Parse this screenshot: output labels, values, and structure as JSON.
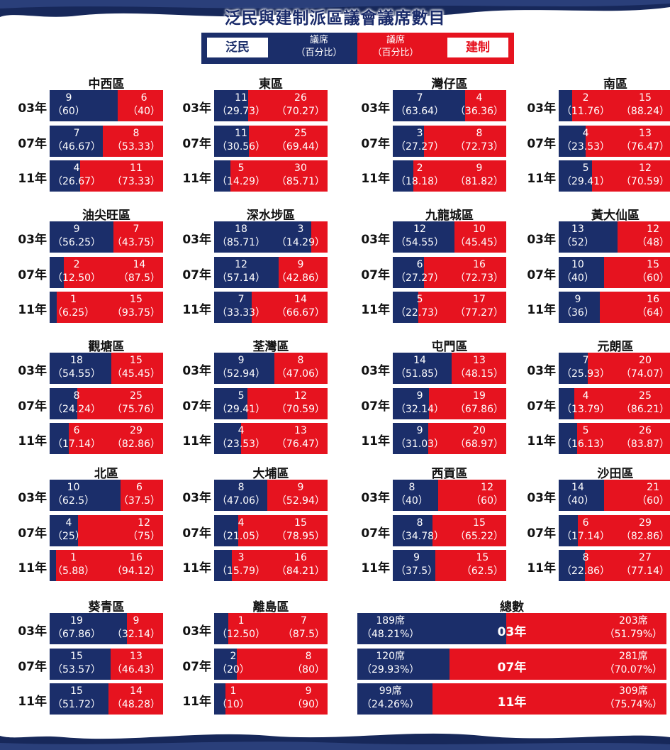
{
  "title": "泛民與建制派區議會議席數目",
  "legend": {
    "pan": "泛民",
    "pan_sub": "議席\n（百分比）",
    "est_sub": "議席\n（百分比）",
    "est": "建制"
  },
  "colors": {
    "pan_democrat": "#1b2e6a",
    "pro_establishment": "#e6131f"
  },
  "chart_data": {
    "type": "bar",
    "title": "泛民與建制派區議會議席數目",
    "series_names": [
      "泛民",
      "建制"
    ],
    "years": [
      "03年",
      "07年",
      "11年"
    ],
    "districts": [
      {
        "name": "中西區",
        "rows": [
          {
            "year": "03年",
            "pan": "9",
            "pan_pct": "（60）",
            "est": "6",
            "est_pct": "（40）",
            "share": 60
          },
          {
            "year": "07年",
            "pan": "7",
            "pan_pct": "（46.67）",
            "est": "8",
            "est_pct": "（53.33）",
            "share": 46.67
          },
          {
            "year": "11年",
            "pan": "4",
            "pan_pct": "（26.67）",
            "est": "11",
            "est_pct": "（73.33）",
            "share": 26.67
          }
        ]
      },
      {
        "name": "東區",
        "rows": [
          {
            "year": "03年",
            "pan": "11",
            "pan_pct": "（29.73）",
            "est": "26",
            "est_pct": "（70.27）",
            "share": 29.73
          },
          {
            "year": "07年",
            "pan": "11",
            "pan_pct": "（30.56）",
            "est": "25",
            "est_pct": "（69.44）",
            "share": 30.56
          },
          {
            "year": "11年",
            "pan": "5",
            "pan_pct": "（14.29）",
            "est": "30",
            "est_pct": "（85.71）",
            "share": 14.29
          }
        ]
      },
      {
        "name": "灣仔區",
        "rows": [
          {
            "year": "03年",
            "pan": "7",
            "pan_pct": "（63.64）",
            "est": "4",
            "est_pct": "（36.36）",
            "share": 63.64
          },
          {
            "year": "07年",
            "pan": "3",
            "pan_pct": "（27.27）",
            "est": "8",
            "est_pct": "（72.73）",
            "share": 27.27
          },
          {
            "year": "11年",
            "pan": "2",
            "pan_pct": "（18.18）",
            "est": "9",
            "est_pct": "（81.82）",
            "share": 18.18
          }
        ]
      },
      {
        "name": "南區",
        "rows": [
          {
            "year": "03年",
            "pan": "2",
            "pan_pct": "（11.76）",
            "est": "15",
            "est_pct": "（88.24）",
            "share": 11.76
          },
          {
            "year": "07年",
            "pan": "4",
            "pan_pct": "（23.53）",
            "est": "13",
            "est_pct": "（76.47）",
            "share": 23.53
          },
          {
            "year": "11年",
            "pan": "5",
            "pan_pct": "（29.41）",
            "est": "12",
            "est_pct": "（70.59）",
            "share": 29.41
          }
        ]
      },
      {
        "name": "油尖旺區",
        "rows": [
          {
            "year": "03年",
            "pan": "9",
            "pan_pct": "（56.25）",
            "est": "7",
            "est_pct": "（43.75）",
            "share": 56.25
          },
          {
            "year": "07年",
            "pan": "2",
            "pan_pct": "（12.50）",
            "est": "14",
            "est_pct": "（87.5）",
            "share": 12.5
          },
          {
            "year": "11年",
            "pan": "1",
            "pan_pct": "（6.25）",
            "est": "15",
            "est_pct": "（93.75）",
            "share": 6.25
          }
        ]
      },
      {
        "name": "深水埗區",
        "rows": [
          {
            "year": "03年",
            "pan": "18",
            "pan_pct": "（85.71）",
            "est": "3",
            "est_pct": "（14.29）",
            "share": 85.71
          },
          {
            "year": "07年",
            "pan": "12",
            "pan_pct": "（57.14）",
            "est": "9",
            "est_pct": "（42.86）",
            "share": 57.14
          },
          {
            "year": "11年",
            "pan": "7",
            "pan_pct": "（33.33）",
            "est": "14",
            "est_pct": "（66.67）",
            "share": 33.33
          }
        ]
      },
      {
        "name": "九龍城區",
        "rows": [
          {
            "year": "03年",
            "pan": "12",
            "pan_pct": "（54.55）",
            "est": "10",
            "est_pct": "（45.45）",
            "share": 54.55
          },
          {
            "year": "07年",
            "pan": "6",
            "pan_pct": "（27.27）",
            "est": "16",
            "est_pct": "（72.73）",
            "share": 27.27
          },
          {
            "year": "11年",
            "pan": "5",
            "pan_pct": "（22.73）",
            "est": "17",
            "est_pct": "（77.27）",
            "share": 22.73
          }
        ]
      },
      {
        "name": "黃大仙區",
        "rows": [
          {
            "year": "03年",
            "pan": "13",
            "pan_pct": "（52）",
            "est": "12",
            "est_pct": "（48）",
            "share": 52
          },
          {
            "year": "07年",
            "pan": "10",
            "pan_pct": "（40）",
            "est": "15",
            "est_pct": "（60）",
            "share": 40
          },
          {
            "year": "11年",
            "pan": "9",
            "pan_pct": "（36）",
            "est": "16",
            "est_pct": "（64）",
            "share": 36
          }
        ]
      },
      {
        "name": "觀塘區",
        "rows": [
          {
            "year": "03年",
            "pan": "18",
            "pan_pct": "（54.55）",
            "est": "15",
            "est_pct": "（45.45）",
            "share": 54.55
          },
          {
            "year": "07年",
            "pan": "8",
            "pan_pct": "（24.24）",
            "est": "25",
            "est_pct": "（75.76）",
            "share": 24.24
          },
          {
            "year": "11年",
            "pan": "6",
            "pan_pct": "（17.14）",
            "est": "29",
            "est_pct": "（82.86）",
            "share": 17.14
          }
        ]
      },
      {
        "name": "荃灣區",
        "rows": [
          {
            "year": "03年",
            "pan": "9",
            "pan_pct": "（52.94）",
            "est": "8",
            "est_pct": "（47.06）",
            "share": 52.94
          },
          {
            "year": "07年",
            "pan": "5",
            "pan_pct": "（29.41）",
            "est": "12",
            "est_pct": "（70.59）",
            "share": 29.41
          },
          {
            "year": "11年",
            "pan": "4",
            "pan_pct": "（23.53）",
            "est": "13",
            "est_pct": "（76.47）",
            "share": 23.53
          }
        ]
      },
      {
        "name": "屯門區",
        "rows": [
          {
            "year": "03年",
            "pan": "14",
            "pan_pct": "（51.85）",
            "est": "13",
            "est_pct": "（48.15）",
            "share": 51.85
          },
          {
            "year": "07年",
            "pan": "9",
            "pan_pct": "（32.14）",
            "est": "19",
            "est_pct": "（67.86）",
            "share": 32.14
          },
          {
            "year": "11年",
            "pan": "9",
            "pan_pct": "（31.03）",
            "est": "20",
            "est_pct": "（68.97）",
            "share": 31.03
          }
        ]
      },
      {
        "name": "元朗區",
        "rows": [
          {
            "year": "03年",
            "pan": "7",
            "pan_pct": "（25.93）",
            "est": "20",
            "est_pct": "（74.07）",
            "share": 25.93
          },
          {
            "year": "07年",
            "pan": "4",
            "pan_pct": "（13.79）",
            "est": "25",
            "est_pct": "（86.21）",
            "share": 13.79
          },
          {
            "year": "11年",
            "pan": "5",
            "pan_pct": "（16.13）",
            "est": "26",
            "est_pct": "（83.87）",
            "share": 16.13
          }
        ]
      },
      {
        "name": "北區",
        "rows": [
          {
            "year": "03年",
            "pan": "10",
            "pan_pct": "（62.5）",
            "est": "6",
            "est_pct": "（37.5）",
            "share": 62.5
          },
          {
            "year": "07年",
            "pan": "4",
            "pan_pct": "（25）",
            "est": "12",
            "est_pct": "（75）",
            "share": 25
          },
          {
            "year": "11年",
            "pan": "1",
            "pan_pct": "（5.88）",
            "est": "16",
            "est_pct": "（94.12）",
            "share": 5.88
          }
        ]
      },
      {
        "name": "大埔區",
        "rows": [
          {
            "year": "03年",
            "pan": "8",
            "pan_pct": "（47.06）",
            "est": "9",
            "est_pct": "（52.94）",
            "share": 47.06
          },
          {
            "year": "07年",
            "pan": "4",
            "pan_pct": "（21.05）",
            "est": "15",
            "est_pct": "（78.95）",
            "share": 21.05
          },
          {
            "year": "11年",
            "pan": "3",
            "pan_pct": "（15.79）",
            "est": "16",
            "est_pct": "（84.21）",
            "share": 15.79
          }
        ]
      },
      {
        "name": "西貢區",
        "rows": [
          {
            "year": "03年",
            "pan": "8",
            "pan_pct": "（40）",
            "est": "12",
            "est_pct": "（60）",
            "share": 40
          },
          {
            "year": "07年",
            "pan": "8",
            "pan_pct": "（34.78）",
            "est": "15",
            "est_pct": "（65.22）",
            "share": 34.78
          },
          {
            "year": "11年",
            "pan": "9",
            "pan_pct": "（37.5）",
            "est": "15",
            "est_pct": "（62.5）",
            "share": 37.5
          }
        ]
      },
      {
        "name": "沙田區",
        "rows": [
          {
            "year": "03年",
            "pan": "14",
            "pan_pct": "（40）",
            "est": "21",
            "est_pct": "（60）",
            "share": 40
          },
          {
            "year": "07年",
            "pan": "6",
            "pan_pct": "（17.14）",
            "est": "29",
            "est_pct": "（82.86）",
            "share": 17.14
          },
          {
            "year": "11年",
            "pan": "8",
            "pan_pct": "（22.86）",
            "est": "27",
            "est_pct": "（77.14）",
            "share": 22.86
          }
        ]
      },
      {
        "name": "葵青區",
        "rows": [
          {
            "year": "03年",
            "pan": "19",
            "pan_pct": "（67.86）",
            "est": "9",
            "est_pct": "（32.14）",
            "share": 67.86
          },
          {
            "year": "07年",
            "pan": "15",
            "pan_pct": "（53.57）",
            "est": "13",
            "est_pct": "（46.43）",
            "share": 53.57
          },
          {
            "year": "11年",
            "pan": "15",
            "pan_pct": "（51.72）",
            "est": "14",
            "est_pct": "（48.28）",
            "share": 51.72
          }
        ]
      },
      {
        "name": "離島區",
        "rows": [
          {
            "year": "03年",
            "pan": "1",
            "pan_pct": "（12.50）",
            "est": "7",
            "est_pct": "（87.5）",
            "share": 12.5
          },
          {
            "year": "07年",
            "pan": "2",
            "pan_pct": "（20）",
            "est": "8",
            "est_pct": "（80）",
            "share": 20
          },
          {
            "year": "11年",
            "pan": "1",
            "pan_pct": "（10）",
            "est": "9",
            "est_pct": "（90）",
            "share": 10
          }
        ]
      }
    ],
    "total": {
      "name": "總數",
      "rows": [
        {
          "year": "03年",
          "pan": "189席",
          "pan_pct": "（48.21%）",
          "est": "203席",
          "est_pct": "（51.79%）",
          "share": 48.21
        },
        {
          "year": "07年",
          "pan": "120席",
          "pan_pct": "（29.93%）",
          "est": "281席",
          "est_pct": "（70.07%）",
          "share": 29.93
        },
        {
          "year": "11年",
          "pan": "99席",
          "pan_pct": "（24.26%）",
          "est": "309席",
          "est_pct": "（75.74%）",
          "share": 24.26
        }
      ]
    }
  }
}
